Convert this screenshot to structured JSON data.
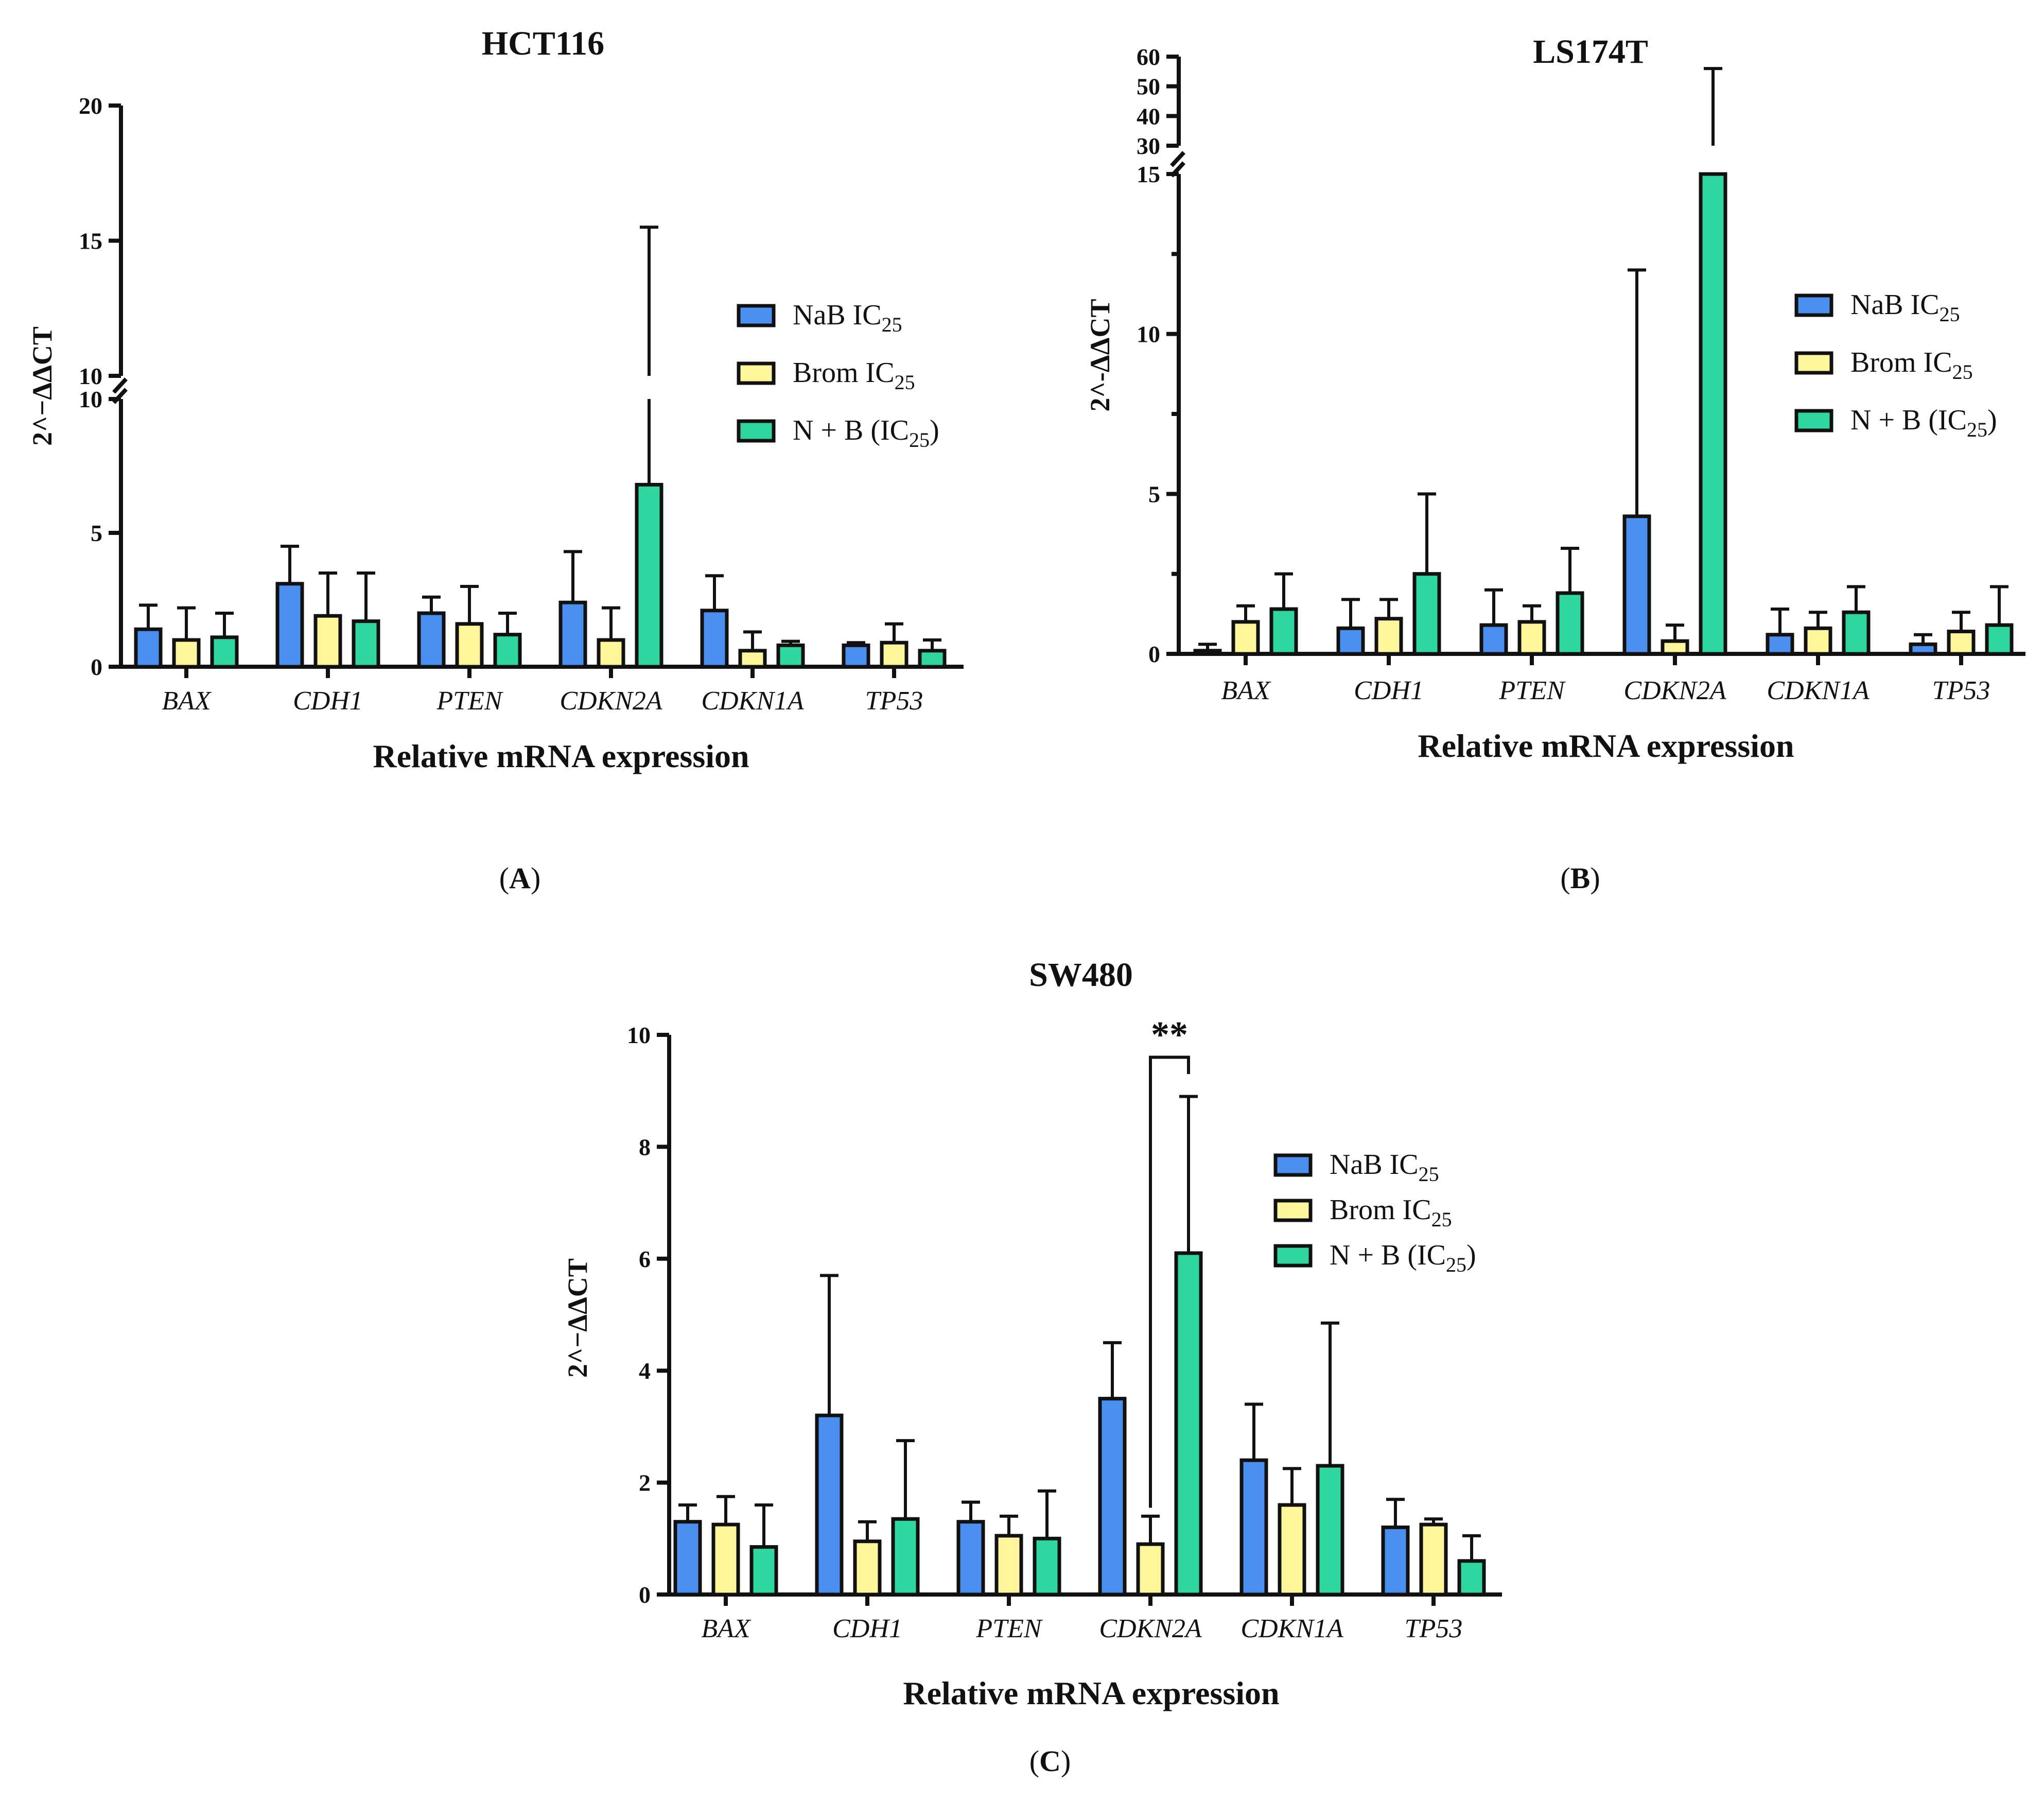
{
  "figure": {
    "panel_labels": [
      "A",
      "B",
      "C"
    ]
  },
  "legend_items": [
    {
      "name": "NaB IC",
      "sub": "25",
      "suffix": "",
      "color": "#4a8ff0"
    },
    {
      "name": "Brom IC",
      "sub": "25",
      "suffix": "",
      "color": "#fff59a"
    },
    {
      "name": "N + B (IC",
      "sub": "25",
      "suffix": ")",
      "color": "#2fd6a0"
    }
  ],
  "chart_data": [
    {
      "id": "A",
      "type": "bar",
      "title": "HCT116",
      "xlabel": "Relative mRNA expression",
      "ylabel": "2^−ΔΔCT",
      "categories": [
        "BAX",
        "CDH1",
        "PTEN",
        "CDKN2A",
        "CDKN1A",
        "TP53"
      ],
      "axis_break": {
        "lower": [
          0,
          10
        ],
        "upper": [
          10,
          20
        ]
      },
      "yticks_lower": [
        0,
        5,
        10
      ],
      "yticks_upper": [
        10,
        15,
        20
      ],
      "series": [
        {
          "name": "NaB IC25",
          "values": [
            1.4,
            3.1,
            2.0,
            2.4,
            2.1,
            0.8
          ],
          "errors": [
            0.9,
            1.4,
            0.6,
            1.9,
            1.3,
            0.1
          ]
        },
        {
          "name": "Brom IC25",
          "values": [
            1.0,
            1.9,
            1.6,
            1.0,
            0.6,
            0.9
          ],
          "errors": [
            1.2,
            1.6,
            1.4,
            1.2,
            0.7,
            0.7
          ]
        },
        {
          "name": "N + B (IC25)",
          "values": [
            1.1,
            1.7,
            1.2,
            6.8,
            0.8,
            0.6
          ],
          "errors": [
            0.9,
            1.8,
            0.8,
            8.7,
            0.15,
            0.4
          ]
        }
      ]
    },
    {
      "id": "B",
      "type": "bar",
      "title": "LS174T",
      "xlabel": "Relative mRNA expression",
      "ylabel": "2^-ΔΔCT",
      "categories": [
        "BAX",
        "CDH1",
        "PTEN",
        "CDKN2A",
        "CDKN1A",
        "TP53"
      ],
      "axis_break": {
        "lower": [
          0,
          15
        ],
        "upper": [
          30,
          60
        ]
      },
      "yticks_lower": [
        0,
        5,
        10,
        15
      ],
      "yticks_upper": [
        30,
        40,
        50,
        60
      ],
      "series": [
        {
          "name": "NaB IC25",
          "values": [
            0.1,
            0.8,
            0.9,
            4.3,
            0.6,
            0.3
          ],
          "errors": [
            0.2,
            0.9,
            1.1,
            7.7,
            0.8,
            0.3
          ]
        },
        {
          "name": "Brom IC25",
          "values": [
            1.0,
            1.1,
            1.0,
            0.4,
            0.8,
            0.7
          ],
          "errors": [
            0.5,
            0.6,
            0.5,
            0.5,
            0.5,
            0.6
          ]
        },
        {
          "name": "N + B (IC25)",
          "values": [
            1.4,
            2.5,
            1.9,
            15.0,
            1.3,
            0.9
          ],
          "errors": [
            1.1,
            2.5,
            1.4,
            41.0,
            0.8,
            1.2
          ]
        }
      ]
    },
    {
      "id": "C",
      "type": "bar",
      "title": "SW480",
      "xlabel": "Relative mRNA expression",
      "ylabel": "2^−ΔΔCT",
      "categories": [
        "BAX",
        "CDH1",
        "PTEN",
        "CDKN2A",
        "CDKN1A",
        "TP53"
      ],
      "ylim": [
        0,
        10
      ],
      "yticks": [
        0,
        2,
        4,
        6,
        8,
        10
      ],
      "series": [
        {
          "name": "NaB IC25",
          "values": [
            1.3,
            3.2,
            1.3,
            3.5,
            2.4,
            1.2
          ],
          "errors": [
            0.3,
            2.5,
            0.35,
            1.0,
            1.0,
            0.5
          ]
        },
        {
          "name": "Brom IC25",
          "values": [
            1.25,
            0.95,
            1.05,
            0.9,
            1.6,
            1.25
          ],
          "errors": [
            0.5,
            0.35,
            0.35,
            0.5,
            0.65,
            0.1
          ]
        },
        {
          "name": "N + B (IC25)",
          "values": [
            0.85,
            1.35,
            1.0,
            6.1,
            2.3,
            0.6
          ],
          "errors": [
            0.75,
            1.4,
            0.85,
            2.8,
            2.55,
            0.45
          ]
        }
      ],
      "annotations": [
        {
          "text": "**",
          "between": [
            "Brom IC25",
            "N + B (IC25)"
          ],
          "category": "CDKN2A"
        }
      ]
    }
  ]
}
